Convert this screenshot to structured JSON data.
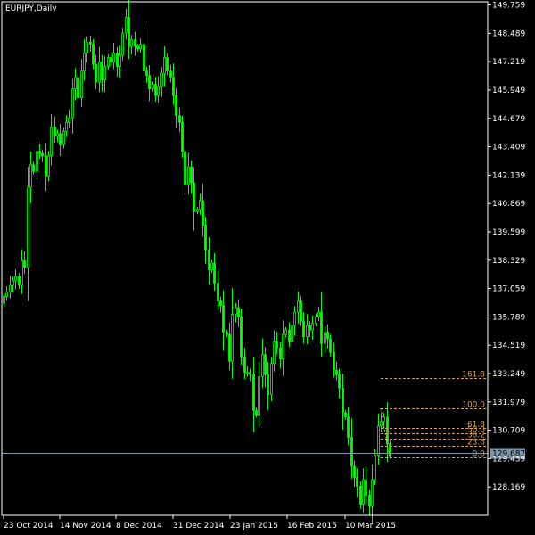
{
  "window": {
    "title": "EURJPY,Daily"
  },
  "colors": {
    "background": "#000000",
    "frame": "#ffffff",
    "candle": "#00ff00",
    "fib": "#d2a05a",
    "price_line": "#7f96a8",
    "price_label_bg": "#7f96a8",
    "price_label_text": "#000000"
  },
  "chart_data": {
    "type": "candlestick",
    "symbol": "EURJPY",
    "timeframe": "Daily",
    "ylim": [
      126.9,
      149.9
    ],
    "y_ticks": [
      "149.759",
      "148.489",
      "147.219",
      "145.949",
      "144.679",
      "143.409",
      "142.139",
      "140.869",
      "139.599",
      "138.329",
      "137.059",
      "135.789",
      "134.519",
      "133.249",
      "131.979",
      "130.709",
      "129.439",
      "128.169"
    ],
    "x_ticks": [
      "23 Oct 2014",
      "14 Nov 2014",
      "8 Dec 2014",
      "31 Dec 2014",
      "23 Jan 2015",
      "16 Feb 2015",
      "10 Mar 2015"
    ],
    "current_price": "129.687",
    "fibonacci": {
      "levels": [
        {
          "label": "161.8",
          "value": 133.04
        },
        {
          "label": "100.0",
          "value": 131.68
        },
        {
          "label": "61.8",
          "value": 130.83
        },
        {
          "label": "50.0",
          "value": 130.58
        },
        {
          "label": "38.2",
          "value": 130.32
        },
        {
          "label": "23.6",
          "value": 130.0
        },
        {
          "label": "0.0",
          "value": 129.48
        }
      ]
    },
    "close": [
      136.7,
      136.9,
      137.2,
      137.4,
      137.6,
      137.2,
      138.3,
      138.0,
      141.6,
      142.6,
      142.3,
      143.2,
      143.1,
      143.0,
      142.1,
      143.0,
      144.3,
      143.9,
      144.0,
      143.5,
      144.1,
      144.5,
      144.7,
      146.0,
      146.5,
      145.6,
      146.8,
      147.6,
      148.1,
      148.0,
      147.1,
      146.3,
      147.2,
      146.4,
      147.0,
      147.4,
      147.2,
      147.6,
      147.0,
      147.5,
      148.5,
      149.2,
      147.9,
      148.2,
      147.9,
      147.8,
      148.0,
      146.8,
      146.6,
      146.0,
      146.2,
      145.7,
      146.1,
      146.7,
      147.4,
      146.8,
      146.5,
      145.7,
      144.8,
      144.5,
      143.2,
      141.7,
      142.5,
      141.8,
      140.5,
      140.6,
      141.0,
      139.9,
      138.8,
      137.9,
      138.2,
      137.3,
      136.5,
      136.3,
      135.1,
      135.0,
      133.8,
      135.9,
      136.2,
      135.8,
      134.0,
      133.3,
      133.3,
      133.2,
      131.6,
      131.4,
      133.1,
      134.1,
      133.2,
      132.3,
      133.7,
      134.7,
      134.4,
      133.9,
      135.0,
      135.2,
      134.7,
      135.4,
      136.0,
      136.5,
      135.6,
      134.9,
      135.4,
      135.2,
      135.5,
      135.8,
      136.0,
      134.6,
      135.1,
      134.8,
      134.2,
      133.4,
      133.2,
      132.6,
      131.5,
      131.3,
      130.4,
      129.1,
      128.6,
      128.2,
      127.4,
      128.5,
      127.8,
      127.3,
      128.5,
      129.6,
      130.9,
      131.1,
      131.3,
      130.1,
      129.6
    ],
    "ylabel": "",
    "xlabel": "",
    "title": ""
  }
}
